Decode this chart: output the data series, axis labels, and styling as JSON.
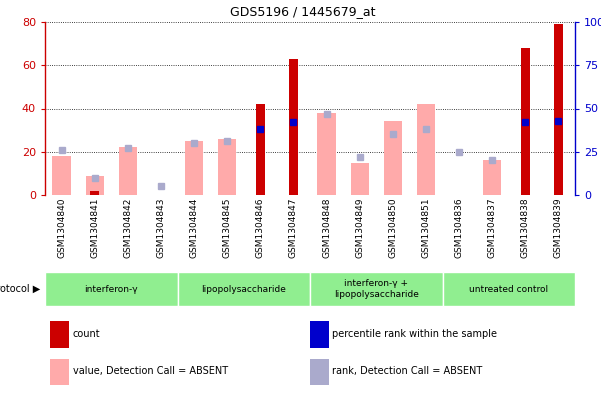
{
  "title": "GDS5196 / 1445679_at",
  "samples": [
    "GSM1304840",
    "GSM1304841",
    "GSM1304842",
    "GSM1304843",
    "GSM1304844",
    "GSM1304845",
    "GSM1304846",
    "GSM1304847",
    "GSM1304848",
    "GSM1304849",
    "GSM1304850",
    "GSM1304851",
    "GSM1304836",
    "GSM1304837",
    "GSM1304838",
    "GSM1304839"
  ],
  "count_values": [
    0,
    2,
    0,
    0,
    0,
    0,
    42,
    63,
    0,
    0,
    0,
    0,
    0,
    0,
    68,
    79
  ],
  "percentile_rank": [
    null,
    null,
    null,
    null,
    null,
    null,
    38,
    42,
    null,
    null,
    null,
    null,
    null,
    null,
    42,
    43
  ],
  "absent_value": [
    18,
    9,
    22,
    null,
    25,
    26,
    null,
    null,
    38,
    15,
    34,
    42,
    null,
    16,
    null,
    null
  ],
  "absent_rank": [
    26,
    10,
    27,
    5,
    30,
    31,
    null,
    null,
    47,
    22,
    35,
    38,
    25,
    20,
    null,
    null
  ],
  "left_ylim": [
    0,
    80
  ],
  "right_ylim": [
    0,
    100
  ],
  "left_yticks": [
    0,
    20,
    40,
    60,
    80
  ],
  "right_yticks": [
    0,
    25,
    50,
    75,
    100
  ],
  "right_yticklabels": [
    "0",
    "25",
    "50",
    "75",
    "100%"
  ],
  "protocols": [
    {
      "label": "interferon-γ",
      "start": 0,
      "end": 4
    },
    {
      "label": "lipopolysaccharide",
      "start": 4,
      "end": 8
    },
    {
      "label": "interferon-γ +\nlipopolysaccharide",
      "start": 8,
      "end": 12
    },
    {
      "label": "untreated control",
      "start": 12,
      "end": 16
    }
  ],
  "count_color": "#cc0000",
  "percentile_color": "#0000cc",
  "absent_value_color": "#ffaaaa",
  "absent_rank_color": "#aaaacc",
  "proto_color": "#90ee90",
  "bar_width": 0.55,
  "count_bar_width": 0.28,
  "legend_items": [
    {
      "label": "count",
      "color": "#cc0000"
    },
    {
      "label": "percentile rank within the sample",
      "color": "#0000cc"
    },
    {
      "label": "value, Detection Call = ABSENT",
      "color": "#ffaaaa"
    },
    {
      "label": "rank, Detection Call = ABSENT",
      "color": "#aaaacc"
    }
  ],
  "fig_width": 6.01,
  "fig_height": 3.93,
  "dpi": 100
}
